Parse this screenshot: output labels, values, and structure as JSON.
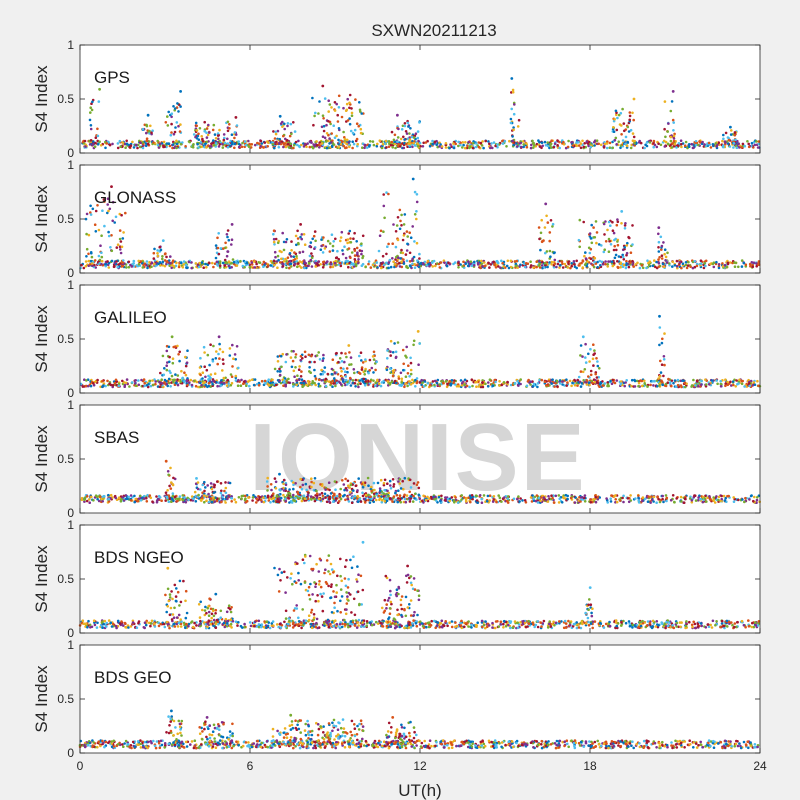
{
  "chart_data": {
    "type": "scatter",
    "title": "SXWN20211213",
    "xlabel": "UT(h)",
    "xlim": [
      0,
      24
    ],
    "xticks": [
      0,
      6,
      12,
      18,
      24
    ],
    "watermark": "IONISE",
    "colors": [
      "#0072BD",
      "#D95319",
      "#EDB120",
      "#7E2F8E",
      "#77AC30",
      "#4DBEEE",
      "#A2142F"
    ],
    "panels": [
      {
        "label": "GPS",
        "ylabel": "S4 Index",
        "ylim": [
          0,
          1
        ],
        "yticks": [
          0,
          0.5,
          1
        ],
        "baseline": 0.08,
        "clusters": [
          {
            "x_range": [
              0.3,
              0.7
            ],
            "max": 0.59
          },
          {
            "x_range": [
              2.2,
              2.6
            ],
            "max": 0.35
          },
          {
            "x_range": [
              3.0,
              3.6
            ],
            "max": 0.57
          },
          {
            "x_range": [
              4.0,
              5.6
            ],
            "max": 0.33
          },
          {
            "x_range": [
              6.8,
              7.6
            ],
            "max": 0.34
          },
          {
            "x_range": [
              8.2,
              10.0
            ],
            "max": 0.62
          },
          {
            "x_range": [
              11.0,
              12.0
            ],
            "max": 0.35
          },
          {
            "x_range": [
              15.2,
              15.5
            ],
            "max": 0.69
          },
          {
            "x_range": [
              18.8,
              19.6
            ],
            "max": 0.5
          },
          {
            "x_range": [
              20.6,
              21.0
            ],
            "max": 0.57
          },
          {
            "x_range": [
              22.7,
              23.2
            ],
            "max": 0.24
          }
        ]
      },
      {
        "label": "GLONASS",
        "ylabel": "S4 Index",
        "ylim": [
          0,
          1
        ],
        "yticks": [
          0,
          0.5,
          1
        ],
        "baseline": 0.08,
        "clusters": [
          {
            "x_range": [
              0.2,
              1.6
            ],
            "max": 0.8
          },
          {
            "x_range": [
              2.6,
              3.2
            ],
            "max": 0.3
          },
          {
            "x_range": [
              4.8,
              5.4
            ],
            "max": 0.45
          },
          {
            "x_range": [
              6.8,
              10.0
            ],
            "max": 0.45
          },
          {
            "x_range": [
              10.5,
              12.0
            ],
            "max": 0.87
          },
          {
            "x_range": [
              16.2,
              16.8
            ],
            "max": 0.64
          },
          {
            "x_range": [
              17.6,
              19.5
            ],
            "max": 0.57
          },
          {
            "x_range": [
              20.4,
              20.8
            ],
            "max": 0.42
          }
        ]
      },
      {
        "label": "GALILEO",
        "ylabel": "S4 Index",
        "ylim": [
          0,
          1
        ],
        "yticks": [
          0,
          0.5,
          1
        ],
        "baseline": 0.09,
        "clusters": [
          {
            "x_range": [
              2.8,
              3.8
            ],
            "max": 0.52
          },
          {
            "x_range": [
              4.2,
              5.6
            ],
            "max": 0.52
          },
          {
            "x_range": [
              6.8,
              10.5
            ],
            "max": 0.44
          },
          {
            "x_range": [
              10.8,
              12.0
            ],
            "max": 0.57
          },
          {
            "x_range": [
              17.6,
              18.4
            ],
            "max": 0.52
          },
          {
            "x_range": [
              20.4,
              20.8
            ],
            "max": 0.71
          }
        ]
      },
      {
        "label": "SBAS",
        "ylabel": "S4 Index",
        "ylim": [
          0,
          1
        ],
        "yticks": [
          0,
          0.5,
          1
        ],
        "baseline": 0.13,
        "clusters": [
          {
            "x_range": [
              3.0,
              3.4
            ],
            "max": 0.48
          },
          {
            "x_range": [
              4.0,
              5.4
            ],
            "max": 0.32
          },
          {
            "x_range": [
              6.6,
              12.0
            ],
            "max": 0.36
          }
        ]
      },
      {
        "label": "BDS NGEO",
        "ylabel": "S4 Index",
        "ylim": [
          0,
          1
        ],
        "yticks": [
          0,
          0.5,
          1
        ],
        "baseline": 0.08,
        "clusters": [
          {
            "x_range": [
              3.0,
              3.8
            ],
            "max": 0.6
          },
          {
            "x_range": [
              4.2,
              5.4
            ],
            "max": 0.36
          },
          {
            "x_range": [
              6.8,
              10.0
            ],
            "max": 0.84
          },
          {
            "x_range": [
              10.6,
              12.0
            ],
            "max": 0.62
          },
          {
            "x_range": [
              17.8,
              18.1
            ],
            "max": 0.42
          }
        ]
      },
      {
        "label": "BDS GEO",
        "ylabel": "S4 Index",
        "ylim": [
          0,
          1
        ],
        "yticks": [
          0,
          0.5,
          1
        ],
        "baseline": 0.08,
        "clusters": [
          {
            "x_range": [
              3.0,
              3.6
            ],
            "max": 0.39
          },
          {
            "x_range": [
              4.2,
              5.4
            ],
            "max": 0.33
          },
          {
            "x_range": [
              6.8,
              10.0
            ],
            "max": 0.35
          },
          {
            "x_range": [
              10.8,
              12.0
            ],
            "max": 0.33
          }
        ]
      }
    ]
  }
}
